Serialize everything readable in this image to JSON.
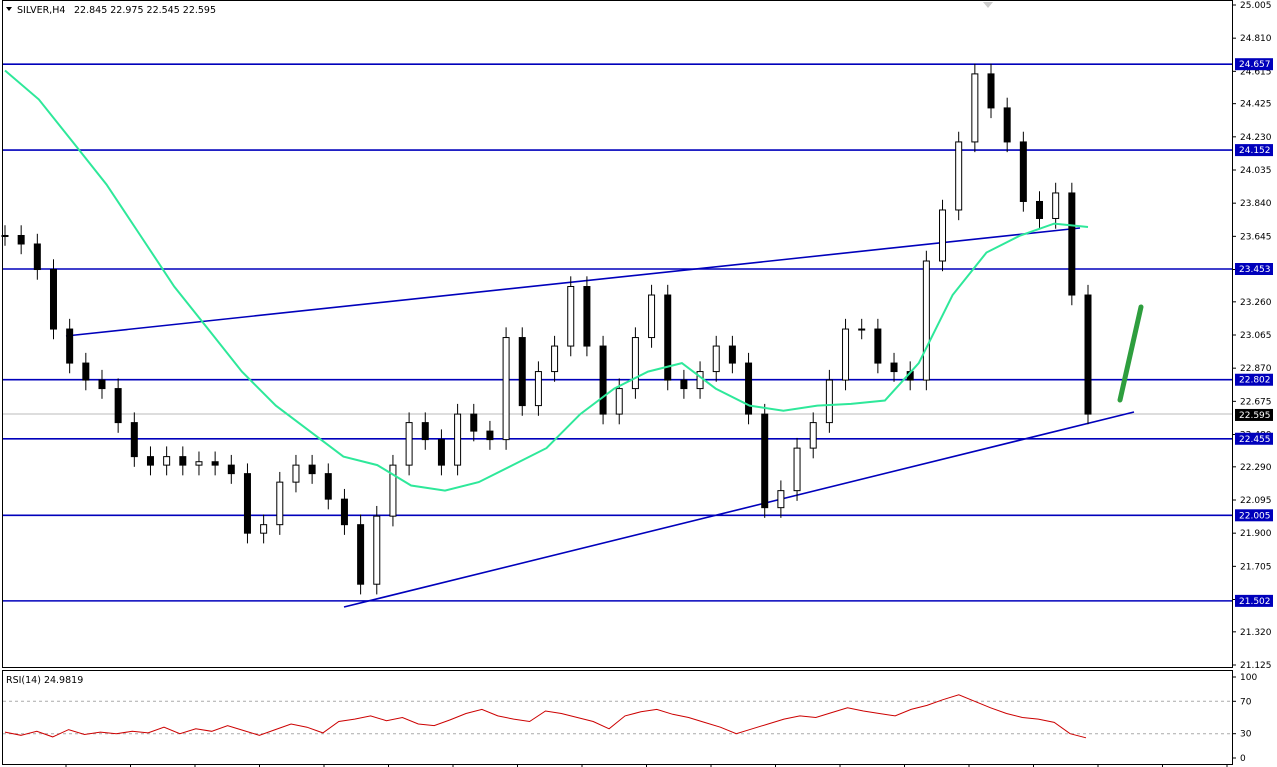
{
  "header": {
    "symbol": "SILVER,H4",
    "ohlc": "22.845 22.975 22.545 22.595"
  },
  "rsi_header": "RSI(14) 24.9819",
  "colors": {
    "level_line": "#0000bb",
    "moving_average": "#2ee89a",
    "rsi": "#cc0000",
    "arrow": "#2e9e3e",
    "candle": "#000000"
  },
  "chart_data": [
    {
      "type": "line",
      "name": "price",
      "ylim": [
        21.125,
        25.005
      ],
      "y_ticks": [
        "25.005",
        "24.810",
        "24.615",
        "24.425",
        "24.230",
        "24.035",
        "23.840",
        "23.645",
        "23.450",
        "23.260",
        "23.065",
        "22.870",
        "22.675",
        "22.480",
        "22.290",
        "22.095",
        "21.900",
        "21.705",
        "21.510",
        "21.320",
        "21.125"
      ],
      "price_tag": "22.595",
      "levels": [
        "24.657",
        "24.152",
        "23.453",
        "22.802",
        "22.455",
        "22.005",
        "21.502"
      ],
      "close_series": [
        23.65,
        23.6,
        23.45,
        23.1,
        22.9,
        22.8,
        22.75,
        22.55,
        22.35,
        22.3,
        22.35,
        22.3,
        22.32,
        22.3,
        22.25,
        21.9,
        21.95,
        22.2,
        22.3,
        22.25,
        22.1,
        21.95,
        21.6,
        22.0,
        22.3,
        22.55,
        22.45,
        22.3,
        22.6,
        22.5,
        22.45,
        23.05,
        22.65,
        22.85,
        23.0,
        23.35,
        23.0,
        22.6,
        22.75,
        23.05,
        23.3,
        22.8,
        22.75,
        22.85,
        23.0,
        22.9,
        22.6,
        22.05,
        22.15,
        22.4,
        22.55,
        22.8,
        23.1,
        23.1,
        22.9,
        22.85,
        22.8,
        23.5,
        23.8,
        24.2,
        24.6,
        24.4,
        24.2,
        23.85,
        23.75,
        23.9,
        23.3,
        22.6
      ],
      "moving_average": [
        24.62,
        24.45,
        24.2,
        23.95,
        23.65,
        23.35,
        23.1,
        22.85,
        22.65,
        22.5,
        22.35,
        22.3,
        22.18,
        22.15,
        22.2,
        22.3,
        22.4,
        22.6,
        22.75,
        22.85,
        22.9,
        22.75,
        22.65,
        22.62,
        22.65,
        22.66,
        22.68,
        22.9,
        23.3,
        23.55,
        23.65,
        23.72,
        23.7
      ]
    },
    {
      "type": "line",
      "name": "RSI(14)",
      "ylim": [
        0,
        100
      ],
      "y_ticks": [
        "100",
        "70",
        "30",
        "0"
      ],
      "values": [
        32,
        28,
        33,
        26,
        35,
        29,
        32,
        30,
        33,
        31,
        38,
        30,
        36,
        33,
        40,
        34,
        28,
        35,
        42,
        38,
        31,
        45,
        48,
        52,
        46,
        50,
        42,
        40,
        47,
        55,
        60,
        52,
        48,
        45,
        58,
        55,
        50,
        45,
        36,
        52,
        57,
        60,
        54,
        50,
        44,
        38,
        30,
        36,
        42,
        48,
        52,
        50,
        56,
        62,
        58,
        55,
        52,
        60,
        65,
        72,
        78,
        70,
        62,
        55,
        50,
        48,
        44,
        30,
        25
      ]
    }
  ]
}
